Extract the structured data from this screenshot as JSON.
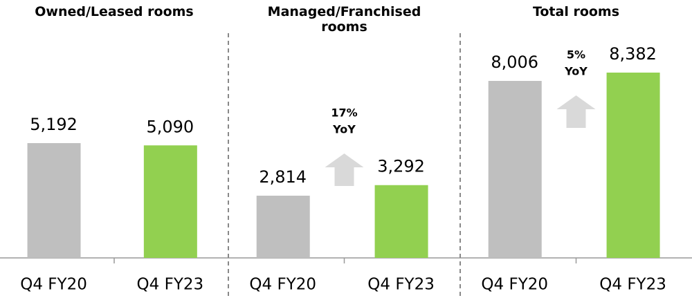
{
  "chart_data": [
    {
      "type": "bar",
      "title": "Owned/Leased rooms",
      "categories": [
        "Q4 FY20",
        "Q4 FY23"
      ],
      "values": [
        5192,
        5090
      ],
      "value_labels": [
        "5,192",
        "5,090"
      ],
      "colors": [
        "#bfbfbf",
        "#92d050"
      ]
    },
    {
      "type": "bar",
      "title": "Managed/Franchised rooms",
      "categories": [
        "Q4 FY20",
        "Q4 FY23"
      ],
      "values": [
        2814,
        3292
      ],
      "value_labels": [
        "2,814",
        "3,292"
      ],
      "colors": [
        "#bfbfbf",
        "#92d050"
      ],
      "annotation": [
        "17%",
        "YoY"
      ]
    },
    {
      "type": "bar",
      "title": "Total rooms",
      "categories": [
        "Q4 FY20",
        "Q4 FY23"
      ],
      "values": [
        8006,
        8382
      ],
      "value_labels": [
        "8,006",
        "8,382"
      ],
      "colors": [
        "#bfbfbf",
        "#92d050"
      ],
      "annotation": [
        "5%",
        "YoY"
      ]
    }
  ]
}
